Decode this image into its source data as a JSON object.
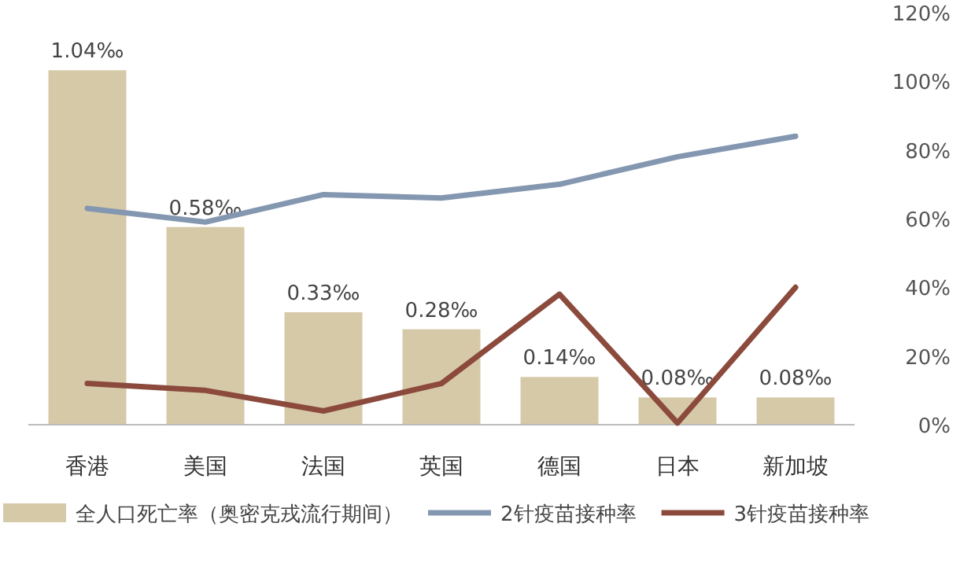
{
  "chart_data": {
    "type": "bar",
    "categories": [
      "香港",
      "美国",
      "法国",
      "英国",
      "德国",
      "日本",
      "新加坡"
    ],
    "series": [
      {
        "name": "全人口死亡率（奥密克戎流行期间）",
        "color": "#d6c9a8",
        "values": [
          1.04,
          0.58,
          0.33,
          0.28,
          0.14,
          0.08,
          0.08
        ],
        "value_labels": [
          "1.04‰",
          "0.58‰",
          "0.33‰",
          "0.28‰",
          "0.14‰",
          "0.08‰",
          "0.08‰"
        ]
      },
      {
        "name": "2针疫苗接种率",
        "type": "line",
        "axis": "y2",
        "color": "#8497b0",
        "values": [
          63,
          59,
          67,
          66,
          70,
          78,
          84
        ]
      },
      {
        "name": "3针疫苗接种率",
        "type": "line",
        "axis": "y2",
        "color": "#8b4a3c",
        "values": [
          12,
          10,
          4,
          12,
          38,
          0.5,
          40
        ]
      }
    ],
    "y2lim": [
      0,
      120
    ],
    "y2ticks": [
      {
        "value": 0,
        "label": "0%"
      },
      {
        "value": 20,
        "label": "20%"
      },
      {
        "value": 40,
        "label": "40%"
      },
      {
        "value": 60,
        "label": "60%"
      },
      {
        "value": 80,
        "label": "80%"
      },
      {
        "value": 100,
        "label": "100%"
      },
      {
        "value": 120,
        "label": "120%"
      }
    ],
    "grid": false,
    "legend": "bottom"
  }
}
